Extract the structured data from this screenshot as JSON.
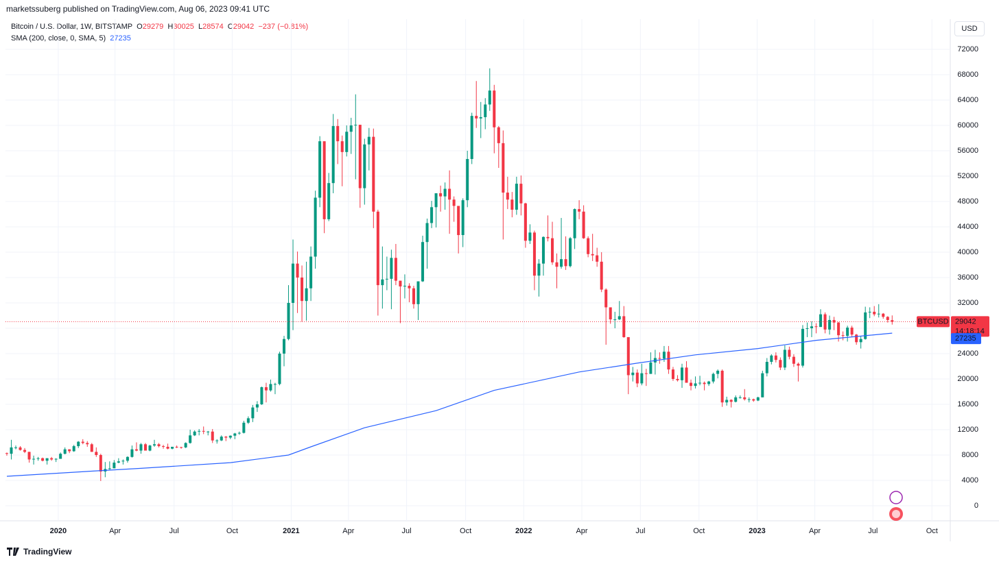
{
  "header": {
    "published": "marketssuberg published on TradingView.com, Aug 06, 2023 09:41 UTC"
  },
  "footer": {
    "brand": "TradingView"
  },
  "currency_button": "USD",
  "chart_data": {
    "type": "candlestick",
    "symbol": "Bitcoin / U.S. Dollar, 1W, BITSTAMP",
    "ohlc_letters": [
      "O",
      "H",
      "L",
      "C"
    ],
    "change_label": "−237 (−0.81%)",
    "ticker": "BTCUSD",
    "countdown": "14:18:14",
    "up_color": "#089981",
    "down_color": "#f23645",
    "ylim": [
      -2380,
      76540
    ],
    "yticks": [
      0,
      4000,
      8000,
      12000,
      16000,
      20000,
      24000,
      28000,
      32000,
      36000,
      40000,
      44000,
      48000,
      52000,
      56000,
      60000,
      64000,
      68000,
      72000
    ],
    "xlim": [
      -0.3,
      211
    ],
    "xticks": [
      {
        "value": 11.5,
        "label": "2020"
      },
      {
        "value": 24.2,
        "label": "Apr"
      },
      {
        "value": 37.4,
        "label": "Jul"
      },
      {
        "value": 50.4,
        "label": "Oct"
      },
      {
        "value": 63.6,
        "label": "2021"
      },
      {
        "value": 76.4,
        "label": "Apr"
      },
      {
        "value": 89.4,
        "label": "Jul"
      },
      {
        "value": 102.6,
        "label": "Oct"
      },
      {
        "value": 115.6,
        "label": "2022"
      },
      {
        "value": 128.6,
        "label": "Apr"
      },
      {
        "value": 141.7,
        "label": "Jul"
      },
      {
        "value": 154.8,
        "label": "Oct"
      },
      {
        "value": 167.8,
        "label": "2023"
      },
      {
        "value": 180.7,
        "label": "Apr"
      },
      {
        "value": 193.7,
        "label": "Jul"
      },
      {
        "value": 206.9,
        "label": "Oct"
      }
    ],
    "grid": true,
    "ohlc": [
      [
        8300,
        8400,
        7900,
        8200
      ],
      [
        8200,
        10400,
        7300,
        9200
      ],
      [
        9200,
        9500,
        8900,
        9200
      ],
      [
        9200,
        9400,
        8700,
        8800
      ],
      [
        8800,
        9100,
        8300,
        8500
      ],
      [
        8500,
        8500,
        6800,
        7300
      ],
      [
        7300,
        7900,
        6500,
        7400
      ],
      [
        7400,
        7700,
        7100,
        7500
      ],
      [
        7500,
        7600,
        7000,
        7100
      ],
      [
        7100,
        7500,
        6500,
        7500
      ],
      [
        7500,
        7700,
        7100,
        7300
      ],
      [
        7300,
        7500,
        6900,
        7400
      ],
      [
        7400,
        8400,
        7400,
        8200
      ],
      [
        8200,
        9200,
        8100,
        8900
      ],
      [
        8900,
        8900,
        8300,
        8600
      ],
      [
        8600,
        9600,
        8500,
        9400
      ],
      [
        9400,
        10200,
        9100,
        10100
      ],
      [
        10100,
        10500,
        9700,
        9900
      ],
      [
        9900,
        10200,
        9300,
        9700
      ],
      [
        9700,
        9900,
        8500,
        8500
      ],
      [
        8500,
        9200,
        7700,
        8000
      ],
      [
        8000,
        8200,
        3900,
        5400
      ],
      [
        5400,
        6900,
        4500,
        5800
      ],
      [
        5800,
        7000,
        5700,
        5900
      ],
      [
        5900,
        7200,
        5900,
        6800
      ],
      [
        6800,
        7500,
        6700,
        7000
      ],
      [
        7000,
        7300,
        6500,
        7100
      ],
      [
        7100,
        7800,
        6800,
        7700
      ],
      [
        7700,
        9500,
        7600,
        8900
      ],
      [
        8900,
        10000,
        8600,
        8700
      ],
      [
        8700,
        9900,
        8200,
        9700
      ],
      [
        9700,
        9900,
        8800,
        8700
      ],
      [
        8700,
        9600,
        8600,
        9500
      ],
      [
        9500,
        10400,
        9300,
        9700
      ],
      [
        9700,
        9900,
        9200,
        9400
      ],
      [
        9400,
        9600,
        9000,
        9300
      ],
      [
        9300,
        9800,
        8900,
        9000
      ],
      [
        9000,
        9300,
        8900,
        9300
      ],
      [
        9300,
        9500,
        9100,
        9250
      ],
      [
        9250,
        9300,
        9000,
        9200
      ],
      [
        9200,
        10000,
        9100,
        9900
      ],
      [
        9900,
        12000,
        9800,
        11100
      ],
      [
        11100,
        11900,
        11000,
        11700
      ],
      [
        11700,
        12100,
        11100,
        11800
      ],
      [
        11800,
        12500,
        11300,
        11700
      ],
      [
        11700,
        11800,
        11100,
        11700
      ],
      [
        11700,
        12100,
        9900,
        10300
      ],
      [
        10300,
        10500,
        9800,
        10300
      ],
      [
        10300,
        11100,
        10200,
        10900
      ],
      [
        10900,
        11000,
        10200,
        10750
      ],
      [
        10750,
        11100,
        10500,
        11050
      ],
      [
        11050,
        11500,
        10500,
        11400
      ],
      [
        11400,
        11700,
        11200,
        11500
      ],
      [
        11500,
        13400,
        11400,
        13100
      ],
      [
        13100,
        14100,
        12900,
        13800
      ],
      [
        13800,
        15900,
        13200,
        15500
      ],
      [
        15500,
        16500,
        14800,
        16000
      ],
      [
        16000,
        18800,
        15900,
        18700
      ],
      [
        18700,
        19400,
        16300,
        18200
      ],
      [
        18200,
        19900,
        18000,
        19200
      ],
      [
        19200,
        19400,
        17600,
        19200
      ],
      [
        19200,
        24300,
        19000,
        24000
      ],
      [
        24000,
        26800,
        22000,
        26300
      ],
      [
        26300,
        34800,
        26100,
        32000
      ],
      [
        32000,
        42000,
        27700,
        38200
      ],
      [
        38200,
        40100,
        30400,
        36000
      ],
      [
        36000,
        37900,
        29000,
        32300
      ],
      [
        32300,
        38500,
        29200,
        34300
      ],
      [
        34300,
        40900,
        32300,
        39300
      ],
      [
        39300,
        49700,
        37400,
        48600
      ],
      [
        48600,
        58300,
        47100,
        57500
      ],
      [
        57500,
        57500,
        43000,
        45200
      ],
      [
        45200,
        52500,
        44900,
        50900
      ],
      [
        50900,
        61800,
        49300,
        59900
      ],
      [
        59900,
        61000,
        53900,
        57500
      ],
      [
        57500,
        58400,
        50400,
        55800
      ],
      [
        55800,
        60000,
        55100,
        59000
      ],
      [
        59000,
        61200,
        55500,
        60000
      ],
      [
        60000,
        64900,
        51500,
        60100
      ],
      [
        60100,
        60100,
        47000,
        50100
      ],
      [
        50100,
        57900,
        47500,
        57000
      ],
      [
        57000,
        59600,
        52900,
        58200
      ],
      [
        58200,
        59500,
        43800,
        46400
      ],
      [
        46400,
        46700,
        30000,
        34800
      ],
      [
        34800,
        40900,
        31100,
        35700
      ],
      [
        35700,
        39300,
        34000,
        35800
      ],
      [
        35800,
        40400,
        31000,
        39100
      ],
      [
        39100,
        41300,
        34800,
        35500
      ],
      [
        35500,
        35500,
        28800,
        34600
      ],
      [
        34600,
        36500,
        32700,
        34700
      ],
      [
        34700,
        35100,
        32100,
        34300
      ],
      [
        34300,
        34700,
        31100,
        31800
      ],
      [
        31800,
        35400,
        29300,
        35400
      ],
      [
        35400,
        42600,
        35300,
        41600
      ],
      [
        41600,
        45300,
        37400,
        44600
      ],
      [
        44600,
        48100,
        43800,
        47100
      ],
      [
        47100,
        49300,
        43900,
        49300
      ],
      [
        49300,
        50500,
        46400,
        48800
      ],
      [
        48800,
        51000,
        46700,
        50000
      ],
      [
        50000,
        52900,
        42900,
        48300
      ],
      [
        48300,
        48800,
        44800,
        47300
      ],
      [
        47300,
        47300,
        39800,
        42700
      ],
      [
        42700,
        48500,
        40800,
        48200
      ],
      [
        48200,
        56000,
        47100,
        54700
      ],
      [
        54700,
        62000,
        53900,
        61500
      ],
      [
        61500,
        67000,
        59600,
        61100
      ],
      [
        61100,
        63700,
        58000,
        61300
      ],
      [
        61300,
        64300,
        59400,
        63300
      ],
      [
        63300,
        69000,
        62300,
        65500
      ],
      [
        65500,
        66400,
        55600,
        59700
      ],
      [
        59700,
        59900,
        53300,
        57200
      ],
      [
        57200,
        59200,
        42000,
        49400
      ],
      [
        49400,
        51900,
        46800,
        48300
      ],
      [
        48300,
        49500,
        45500,
        46700
      ],
      [
        46700,
        51900,
        45900,
        50800
      ],
      [
        50800,
        52100,
        45800,
        47700
      ],
      [
        47700,
        47800,
        40700,
        41800
      ],
      [
        41800,
        44400,
        41300,
        43100
      ],
      [
        43100,
        43400,
        34000,
        36300
      ],
      [
        36300,
        38900,
        33000,
        38200
      ],
      [
        38200,
        42500,
        36300,
        42400
      ],
      [
        42400,
        45800,
        41700,
        42200
      ],
      [
        42200,
        44800,
        38000,
        38400
      ],
      [
        38400,
        39800,
        34300,
        37700
      ],
      [
        37700,
        45400,
        37400,
        38900
      ],
      [
        38900,
        42500,
        37200,
        37800
      ],
      [
        37800,
        42400,
        37600,
        42200
      ],
      [
        42200,
        46900,
        40500,
        46800
      ],
      [
        46800,
        48200,
        45200,
        46400
      ],
      [
        46400,
        47400,
        42100,
        42200
      ],
      [
        42200,
        42500,
        39200,
        39700
      ],
      [
        39700,
        42900,
        38600,
        39500
      ],
      [
        39500,
        40700,
        37700,
        38500
      ],
      [
        38500,
        40000,
        33700,
        34100
      ],
      [
        34100,
        34300,
        25400,
        31300
      ],
      [
        31300,
        31300,
        28700,
        29400
      ],
      [
        29400,
        30600,
        28000,
        29400
      ],
      [
        29400,
        32300,
        29300,
        29900
      ],
      [
        29900,
        31500,
        26500,
        26600
      ],
      [
        26600,
        26600,
        17600,
        20600
      ],
      [
        20600,
        21900,
        19600,
        21000
      ],
      [
        21000,
        21500,
        18700,
        19300
      ],
      [
        19300,
        22400,
        19000,
        20900
      ],
      [
        20900,
        21600,
        18900,
        20800
      ],
      [
        20800,
        24200,
        20800,
        22600
      ],
      [
        22600,
        24600,
        20700,
        23300
      ],
      [
        23300,
        24200,
        22400,
        23200
      ],
      [
        23200,
        25200,
        22700,
        24300
      ],
      [
        24300,
        25200,
        20800,
        21500
      ],
      [
        21500,
        21900,
        19700,
        20000
      ],
      [
        20000,
        20600,
        19600,
        19800
      ],
      [
        19800,
        22400,
        18600,
        21800
      ],
      [
        21800,
        22800,
        19400,
        19400
      ],
      [
        19400,
        19900,
        18200,
        18900
      ],
      [
        18900,
        20400,
        18500,
        19300
      ],
      [
        19300,
        20500,
        19000,
        19400
      ],
      [
        19400,
        19600,
        18200,
        19200
      ],
      [
        19200,
        19700,
        18900,
        19600
      ],
      [
        19600,
        21000,
        19300,
        20800
      ],
      [
        20800,
        21500,
        20100,
        21300
      ],
      [
        21300,
        21500,
        15600,
        16300
      ],
      [
        16300,
        17200,
        15800,
        16700
      ],
      [
        16700,
        16800,
        15500,
        16400
      ],
      [
        16400,
        17400,
        16300,
        17100
      ],
      [
        17100,
        17400,
        16900,
        17100
      ],
      [
        17100,
        18400,
        16600,
        16800
      ],
      [
        16800,
        17100,
        16300,
        16800
      ],
      [
        16800,
        16900,
        16400,
        16600
      ],
      [
        16600,
        17200,
        16500,
        17100
      ],
      [
        17100,
        21300,
        17100,
        20900
      ],
      [
        20900,
        23300,
        20400,
        22700
      ],
      [
        22700,
        23900,
        22300,
        23700
      ],
      [
        23700,
        24200,
        22600,
        23000
      ],
      [
        23000,
        23400,
        21400,
        21800
      ],
      [
        21800,
        25300,
        21400,
        24600
      ],
      [
        24600,
        25100,
        23100,
        23500
      ],
      [
        23500,
        23900,
        21900,
        22400
      ],
      [
        22400,
        22600,
        19600,
        22100
      ],
      [
        22100,
        28500,
        21800,
        27900
      ],
      [
        27900,
        28900,
        26600,
        28000
      ],
      [
        28000,
        29100,
        26600,
        28300
      ],
      [
        28300,
        28800,
        27200,
        28200
      ],
      [
        28200,
        31000,
        28200,
        30200
      ],
      [
        30200,
        30500,
        27200,
        27800
      ],
      [
        27800,
        30000,
        27000,
        29300
      ],
      [
        29300,
        29800,
        27700,
        28900
      ],
      [
        28900,
        29000,
        25900,
        26900
      ],
      [
        26900,
        27500,
        26100,
        26800
      ],
      [
        26800,
        28400,
        25900,
        28100
      ],
      [
        28100,
        28400,
        26700,
        27000
      ],
      [
        27000,
        27100,
        25400,
        25800
      ],
      [
        25800,
        26800,
        24800,
        26300
      ],
      [
        26300,
        31400,
        26200,
        30500
      ],
      [
        30500,
        31300,
        29600,
        30600
      ],
      [
        30600,
        31500,
        29900,
        30200
      ],
      [
        30200,
        31800,
        29700,
        30300
      ],
      [
        30300,
        30400,
        29500,
        29800
      ],
      [
        29800,
        29900,
        28900,
        29300
      ],
      [
        29279,
        30025,
        28574,
        29042
      ]
    ],
    "sma": {
      "name": "SMA (200, close, 0, SMA, 5)",
      "color": "#2962ff",
      "x": [
        0,
        20,
        30,
        50,
        63,
        68,
        80,
        96,
        109,
        128,
        141,
        154,
        168,
        181,
        198
      ],
      "values": [
        4650,
        5500,
        5900,
        6800,
        8000,
        9300,
        12300,
        15000,
        18200,
        21100,
        22500,
        23800,
        24800,
        26100,
        27235
      ]
    }
  }
}
